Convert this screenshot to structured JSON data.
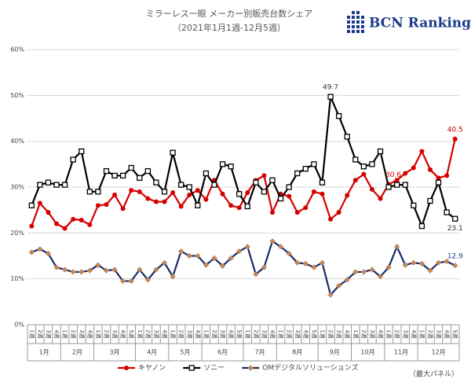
{
  "chart_data": {
    "type": "line",
    "title": "ミラーレス一眼 メーカー別販売台数シェア",
    "subtitle": "（2021年1月1週-12月5週）",
    "logo": "BCN Ranking",
    "note": "（最大パネル）",
    "months": [
      "1月",
      "2月",
      "3月",
      "4月",
      "5月",
      "6月",
      "7月",
      "8月",
      "9月",
      "10月",
      "11月",
      "12月"
    ],
    "categories": [
      "1週",
      "2週",
      "3週",
      "4週",
      "1週",
      "2週",
      "3週",
      "4週",
      "1週",
      "2週",
      "3週",
      "4週",
      "5週",
      "1週",
      "2週",
      "3週",
      "4週",
      "1週",
      "2週",
      "3週",
      "4週",
      "1週",
      "2週",
      "3週",
      "4週",
      "5週",
      "1週",
      "2週",
      "3週",
      "4週",
      "1週",
      "2週",
      "3週",
      "4週",
      "5週",
      "1週",
      "2週",
      "3週",
      "4週",
      "1週",
      "2週",
      "3週",
      "4週",
      "1週",
      "2週",
      "3週",
      "4週",
      "1週",
      "2週",
      "3週",
      "4週",
      "5週"
    ],
    "series": [
      {
        "name": "キヤノン",
        "color": "#d40000",
        "marker": "circle",
        "values": [
          21.5,
          26.5,
          24.5,
          22,
          21,
          23,
          22.8,
          21.8,
          26,
          26.2,
          28.3,
          25.3,
          29.3,
          29,
          27.5,
          26.8,
          26.8,
          28.8,
          25.8,
          28.3,
          29.3,
          27.3,
          31.5,
          28.5,
          26,
          25.5,
          28.8,
          31.5,
          32.5,
          24.5,
          28.5,
          28,
          24.5,
          25.5,
          29,
          28.5,
          23,
          24.5,
          28.2,
          31.5,
          32.8,
          29.5,
          27.5,
          30.6,
          31.5,
          33,
          34.2,
          37.8,
          33.8,
          32,
          32.5,
          40.5
        ]
      },
      {
        "name": "ソニー",
        "color": "#000000",
        "marker": "square",
        "values": [
          26,
          30.5,
          31,
          30.5,
          30.5,
          36,
          37.8,
          29,
          29,
          33.5,
          32.5,
          32.5,
          34.2,
          32,
          33.5,
          31,
          29,
          37.5,
          30.5,
          30,
          26,
          33,
          30.5,
          35,
          34.5,
          28.5,
          25.8,
          31,
          29,
          31.5,
          27.5,
          30,
          33,
          34,
          35,
          31,
          49.7,
          45.5,
          41,
          36,
          34.5,
          35,
          37.8,
          30,
          30.5,
          30.5,
          26,
          21.5,
          27,
          31,
          24.5,
          23.1
        ]
      },
      {
        "name": "OMデジタルソリューションズ",
        "color": "#1b2a6b",
        "marker": "diamond",
        "marker_color": "#c0875a",
        "values": [
          15.8,
          16.5,
          15.5,
          12.5,
          12,
          11.5,
          11.5,
          11.8,
          13,
          11.8,
          12,
          9.5,
          9.5,
          12,
          9.8,
          12,
          13.5,
          10.5,
          16,
          15,
          15,
          13,
          14.5,
          12.8,
          14.5,
          16,
          17,
          11,
          12.5,
          18.2,
          17,
          15.5,
          13.5,
          13.3,
          12.5,
          13.5,
          6.5,
          8.5,
          9.8,
          11.5,
          11.5,
          12,
          10.5,
          12.5,
          17,
          13,
          13.5,
          13.3,
          11.8,
          13.5,
          13.8,
          12.9
        ]
      }
    ],
    "ylim": [
      0,
      60
    ],
    "yticks": [
      {
        "value": 0,
        "label": "0%"
      },
      {
        "value": 10,
        "label": "10%"
      },
      {
        "value": 20,
        "label": "20%"
      },
      {
        "value": 30,
        "label": "30%"
      },
      {
        "value": 40,
        "label": "40%"
      },
      {
        "value": 50,
        "label": "50%"
      },
      {
        "value": 60,
        "label": "60%"
      }
    ],
    "grid": true
  }
}
